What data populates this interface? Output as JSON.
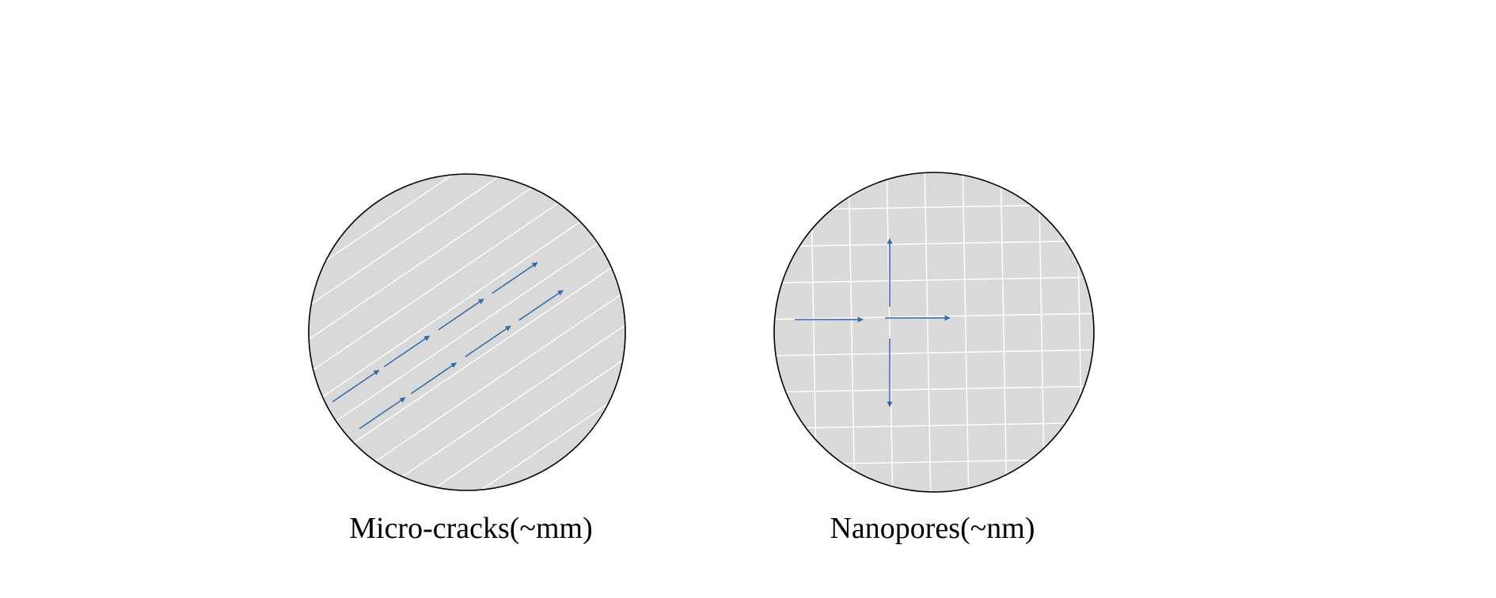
{
  "colors": {
    "background": "#ffffff",
    "disk_fill": "#d9d9d9",
    "disk_outline": "#000000",
    "grid_lines": "#ffffff",
    "flow_arrows": "#2e6aad"
  },
  "panels": [
    {
      "id": "micro-cracks",
      "label": "Micro-cracks(~mm)",
      "pattern": "diagonal-parallel-cracks",
      "arrow_direction": "up-right"
    },
    {
      "id": "nanopores",
      "label": "Nanopores(~nm)",
      "pattern": "square-grid-pores",
      "arrow_direction": "radial-outward"
    }
  ]
}
